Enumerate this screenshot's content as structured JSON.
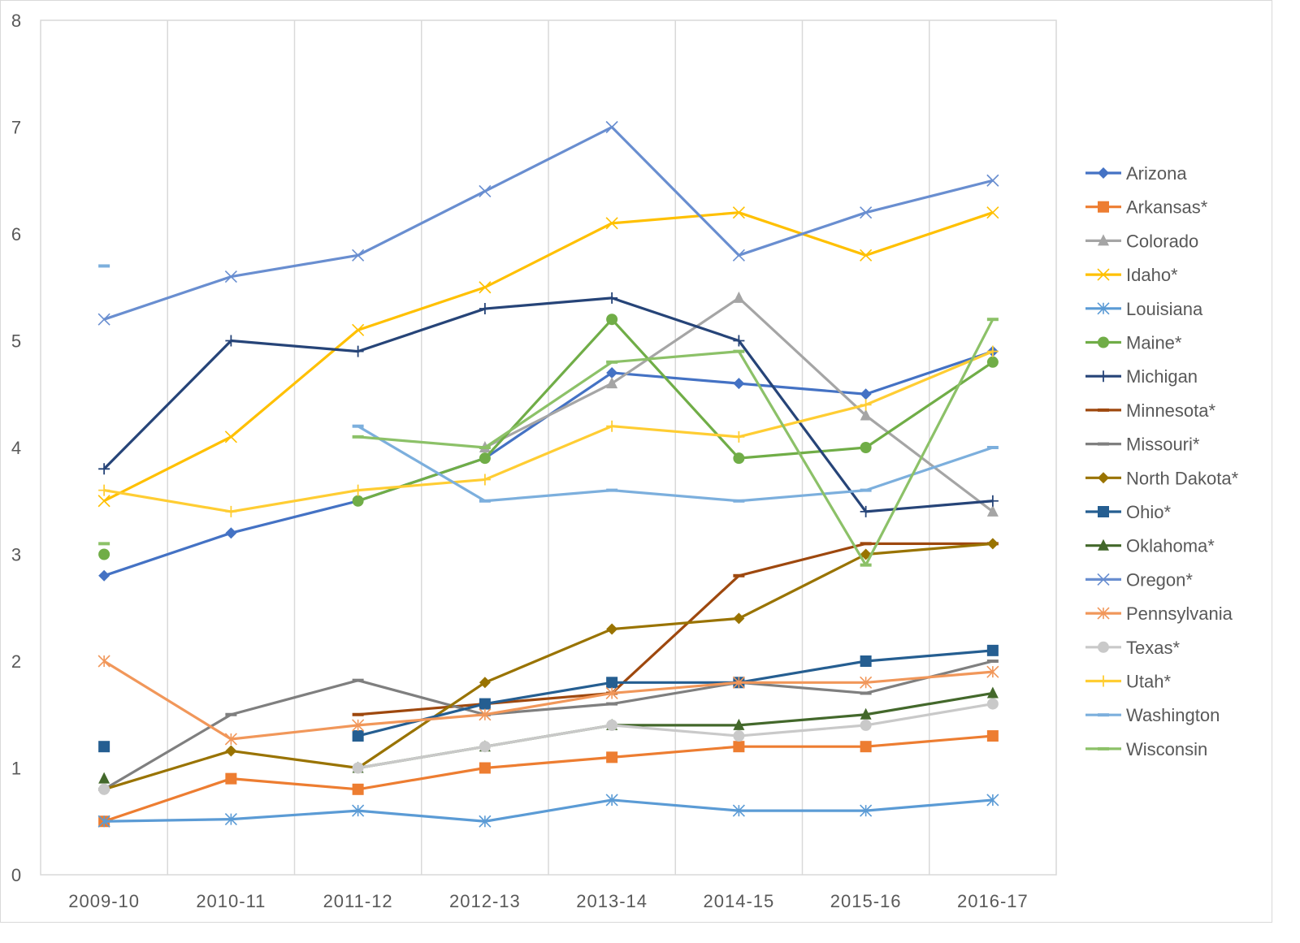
{
  "chart_data": {
    "type": "line",
    "title": "",
    "xlabel": "",
    "ylabel": "",
    "ylim": [
      0,
      8
    ],
    "yticks": [
      "0",
      "1",
      "2",
      "3",
      "4",
      "5",
      "6",
      "7",
      "8"
    ],
    "grid": "vertical",
    "legend_position": "right",
    "categories": [
      "2009-10",
      "2010-11",
      "2011-12",
      "2012-13",
      "2013-14",
      "2014-15",
      "2015-16",
      "2016-17"
    ],
    "series": [
      {
        "name": "Arizona",
        "color": "#4472C4",
        "marker": "diamond",
        "values": [
          2.8,
          3.2,
          3.5,
          3.9,
          4.7,
          4.6,
          4.5,
          4.9
        ]
      },
      {
        "name": "Arkansas*",
        "color": "#ED7D31",
        "marker": "square",
        "values": [
          0.5,
          0.9,
          0.8,
          1.0,
          1.1,
          1.2,
          1.2,
          1.3
        ]
      },
      {
        "name": "Colorado",
        "color": "#A5A5A5",
        "marker": "triangle",
        "values": [
          null,
          null,
          null,
          4.0,
          4.6,
          5.4,
          4.3,
          3.4
        ]
      },
      {
        "name": "Idaho*",
        "color": "#FFC000",
        "marker": "x",
        "values": [
          3.5,
          4.1,
          5.1,
          5.5,
          6.1,
          6.2,
          5.8,
          6.2
        ]
      },
      {
        "name": "Louisiana",
        "color": "#5B9BD5",
        "marker": "asterisk",
        "values": [
          0.5,
          0.52,
          0.6,
          0.5,
          0.7,
          0.6,
          0.6,
          0.7
        ]
      },
      {
        "name": "Maine*",
        "color": "#70AD47",
        "marker": "circle",
        "values": [
          3.0,
          null,
          3.5,
          3.9,
          5.2,
          3.9,
          4.0,
          4.8
        ]
      },
      {
        "name": "Michigan",
        "color": "#264478",
        "marker": "plus",
        "values": [
          3.8,
          5.0,
          4.9,
          5.3,
          5.4,
          5.0,
          3.4,
          3.5
        ]
      },
      {
        "name": "Minnesota*",
        "color": "#9E480E",
        "marker": "dash",
        "values": [
          null,
          null,
          1.5,
          1.6,
          1.7,
          2.8,
          3.1,
          3.1
        ]
      },
      {
        "name": "Missouri*",
        "color": "#7F7F7F",
        "marker": "dash",
        "values": [
          0.8,
          1.5,
          1.82,
          1.5,
          1.6,
          1.8,
          1.7,
          2.0
        ]
      },
      {
        "name": "North Dakota*",
        "color": "#997300",
        "marker": "diamond",
        "values": [
          0.8,
          1.16,
          1.0,
          1.8,
          2.3,
          2.4,
          3.0,
          3.1
        ]
      },
      {
        "name": "Ohio*",
        "color": "#255E91",
        "marker": "square",
        "values": [
          1.2,
          null,
          1.3,
          1.6,
          1.8,
          1.8,
          2.0,
          2.1
        ]
      },
      {
        "name": "Oklahoma*",
        "color": "#43682B",
        "marker": "triangle",
        "values": [
          0.9,
          null,
          1.0,
          1.2,
          1.4,
          1.4,
          1.5,
          1.7
        ]
      },
      {
        "name": "Oregon*",
        "color": "#698ED0",
        "marker": "x",
        "values": [
          5.2,
          5.6,
          5.8,
          6.4,
          7.0,
          5.8,
          6.2,
          6.5
        ]
      },
      {
        "name": "Pennsylvania",
        "color": "#F1975A",
        "marker": "asterisk",
        "values": [
          2.0,
          1.27,
          1.4,
          1.5,
          1.7,
          1.8,
          1.8,
          1.9
        ]
      },
      {
        "name": "Texas*",
        "color": "#C9C9C9",
        "marker": "circle",
        "values": [
          0.8,
          null,
          1.0,
          1.2,
          1.4,
          1.3,
          1.4,
          1.6
        ]
      },
      {
        "name": "Utah*",
        "color": "#FFCD33",
        "marker": "plus",
        "values": [
          3.6,
          3.4,
          3.6,
          3.7,
          4.2,
          4.1,
          4.4,
          4.9
        ]
      },
      {
        "name": "Washington",
        "color": "#7CAFDD",
        "marker": "dash",
        "values": [
          5.7,
          null,
          4.2,
          3.5,
          3.6,
          3.5,
          3.6,
          4.0
        ]
      },
      {
        "name": "Wisconsin",
        "color": "#8CC168",
        "marker": "dash",
        "values": [
          3.1,
          null,
          4.1,
          4.0,
          4.8,
          4.9,
          2.9,
          5.2
        ]
      }
    ]
  }
}
